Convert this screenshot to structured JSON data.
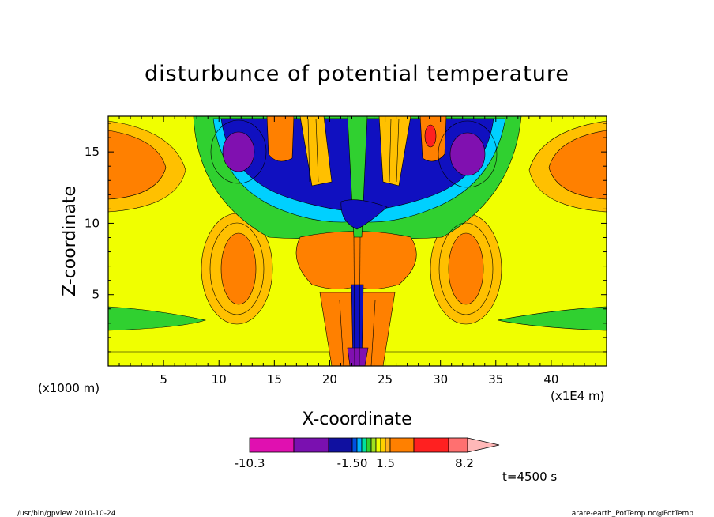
{
  "chart_data": {
    "type": "heatmap",
    "title": "disturbunce of potential temperature",
    "xlabel": "X-coordinate",
    "ylabel": "Z-coordinate",
    "x_unit_left": "(x1000 m)",
    "x_unit_right": "(x1E4 m)",
    "xlim": [
      0,
      45
    ],
    "ylim": [
      0,
      17.5
    ],
    "x_ticks": [
      "5",
      "10",
      "15",
      "20",
      "25",
      "30",
      "35",
      "40"
    ],
    "x_tick_values": [
      5,
      10,
      15,
      20,
      25,
      30,
      35,
      40
    ],
    "y_ticks": [
      "5",
      "10",
      "15"
    ],
    "y_tick_values": [
      5,
      10,
      15
    ],
    "colorbar": {
      "labels": [
        "-10.3",
        "-1.50",
        "1.5",
        "8.2"
      ],
      "colors": [
        "#e010b0",
        "#7a10b0",
        "#1010a0",
        "#0050e0",
        "#00b0ff",
        "#00e0a0",
        "#30d030",
        "#a0e020",
        "#f0ff00",
        "#ffd000",
        "#ffb020",
        "#ff8000",
        "#ff2020",
        "#ff7070",
        "#ffb8b8"
      ]
    },
    "time_label": "t=4500 s",
    "colors": {
      "background_field": "#f0ff00",
      "orange_light": "#ffc000",
      "orange": "#ff8000",
      "red": "#ff2020",
      "green": "#30d030",
      "cyan": "#00d0ff",
      "blue": "#1010c0",
      "purple": "#8010b0"
    }
  },
  "footer": {
    "left": "/usr/bin/gpview   2010-10-24",
    "right": "arare-earth_PotTemp.nc@PotTemp"
  }
}
